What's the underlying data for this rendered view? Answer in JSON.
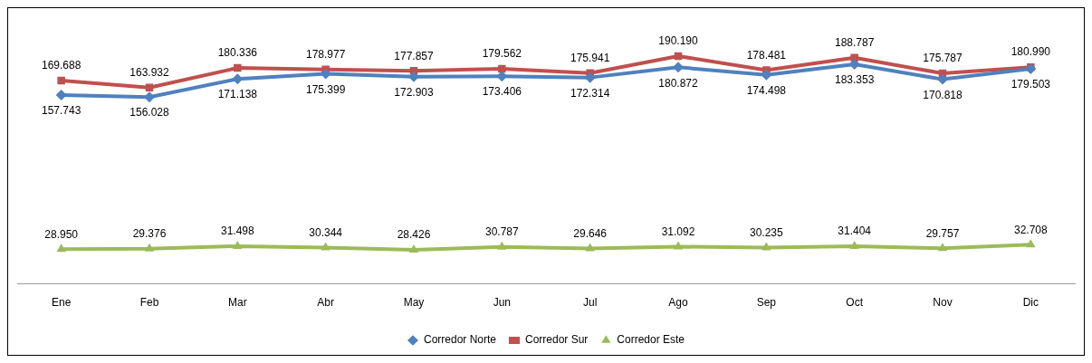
{
  "chart_data": {
    "type": "line",
    "categories": [
      "Ene",
      "Feb",
      "Mar",
      "Abr",
      "May",
      "Jun",
      "Jul",
      "Ago",
      "Sep",
      "Oct",
      "Nov",
      "Dic"
    ],
    "grid": false,
    "legend": "bottom",
    "series": [
      {
        "name": "Corredor Norte",
        "color": "#4f81bd",
        "marker": "diamond",
        "values": [
          157743,
          156028,
          171138,
          175399,
          172903,
          173406,
          172314,
          180872,
          174498,
          183353,
          170818,
          179503
        ],
        "value_labels": [
          "157.743",
          "156.028",
          "171.138",
          "175.399",
          "172.903",
          "173.406",
          "172.314",
          "180.872",
          "174.498",
          "183.353",
          "170.818",
          "179.503"
        ]
      },
      {
        "name": "Corredor Sur",
        "color": "#c0504d",
        "marker": "square",
        "values": [
          169688,
          163932,
          180336,
          178977,
          177857,
          179562,
          175941,
          190190,
          178481,
          188787,
          175787,
          180990
        ],
        "value_labels": [
          "169.688",
          "163.932",
          "180.336",
          "178.977",
          "177.857",
          "179.562",
          "175.941",
          "190.190",
          "178.481",
          "188.787",
          "175.787",
          "180.990"
        ]
      },
      {
        "name": "Corredor Este",
        "color": "#9bbb59",
        "marker": "triangle",
        "values": [
          28950,
          29376,
          31498,
          30344,
          28426,
          30787,
          29646,
          31092,
          30235,
          31404,
          29757,
          32708
        ],
        "value_labels": [
          "28.950",
          "29.376",
          "31.498",
          "30.344",
          "28.426",
          "30.787",
          "29.646",
          "31.092",
          "30.235",
          "31.404",
          "29.757",
          "32.708"
        ]
      }
    ]
  }
}
